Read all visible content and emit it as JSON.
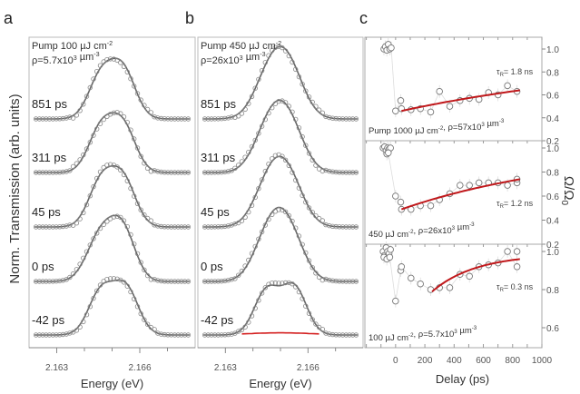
{
  "figure": {
    "panel_labels": [
      "a",
      "b",
      "c"
    ],
    "shared_ylabel": "Norm. Transmission (arb. units)"
  },
  "chart_data": [
    {
      "panel": "a",
      "type": "line",
      "title": "Pump 100 µJ cm-2",
      "annotation_lines": [
        {
          "text": "Pump 100 µJ cm",
          "sup": "-2"
        },
        {
          "text": "ρ=5.7x10",
          "sup": "3",
          "text2": " µm",
          "sup2": "-3"
        }
      ],
      "xlabel": "Energy (eV)",
      "ylabel": "Norm. Transmission (arb. units)",
      "xlim": [
        2.162,
        2.168
      ],
      "xticks": [
        2.163,
        2.166
      ],
      "xtick_labels": [
        "2.163",
        "2.166"
      ],
      "minor_xticks": [
        2.164,
        2.165,
        2.167
      ],
      "series_style": {
        "points": "open circles",
        "fit": "solid grey line"
      },
      "traces": [
        {
          "delay_label": "851 ps",
          "peaks": [
            {
              "center": 2.1646,
              "height": 0.8,
              "width": 0.00045
            },
            {
              "center": 2.1654,
              "height": 0.9,
              "width": 0.00045
            }
          ]
        },
        {
          "delay_label": "311 ps",
          "peaks": [
            {
              "center": 2.1646,
              "height": 0.82,
              "width": 0.00045
            },
            {
              "center": 2.1654,
              "height": 0.86,
              "width": 0.00045
            }
          ]
        },
        {
          "delay_label": "45 ps",
          "peaks": [
            {
              "center": 2.1646,
              "height": 0.84,
              "width": 0.00045
            },
            {
              "center": 2.1654,
              "height": 0.88,
              "width": 0.00045
            }
          ]
        },
        {
          "delay_label": "0 ps",
          "peaks": [
            {
              "center": 2.1646,
              "height": 0.88,
              "width": 0.0005
            },
            {
              "center": 2.1654,
              "height": 0.9,
              "width": 0.00045
            }
          ]
        },
        {
          "delay_label": "-42 ps",
          "peaks": [
            {
              "center": 2.1646,
              "height": 0.82,
              "width": 0.00045
            },
            {
              "center": 2.1655,
              "height": 0.88,
              "width": 0.00045
            }
          ]
        }
      ]
    },
    {
      "panel": "b",
      "type": "line",
      "annotation_lines": [
        {
          "text": "Pump 450 µJ cm",
          "sup": "-2"
        },
        {
          "text": "ρ=26x10",
          "sup": "3",
          "text2": " µm",
          "sup2": "-3"
        }
      ],
      "xlabel": "Energy (eV)",
      "xlim": [
        2.162,
        2.168
      ],
      "xticks": [
        2.163,
        2.166
      ],
      "xtick_labels": [
        "2.163",
        "2.166"
      ],
      "minor_xticks": [
        2.164,
        2.165,
        2.167
      ],
      "traces": [
        {
          "delay_label": "851 ps",
          "peaks": [
            {
              "center": 2.1646,
              "height": 0.78,
              "width": 0.00055
            },
            {
              "center": 2.1653,
              "height": 0.9,
              "width": 0.00055
            }
          ]
        },
        {
          "delay_label": "311 ps",
          "peaks": [
            {
              "center": 2.1646,
              "height": 0.82,
              "width": 0.00055
            },
            {
              "center": 2.1653,
              "height": 0.86,
              "width": 0.00055
            }
          ]
        },
        {
          "delay_label": "45 ps",
          "peaks": [
            {
              "center": 2.1646,
              "height": 0.8,
              "width": 0.00055
            },
            {
              "center": 2.1653,
              "height": 0.84,
              "width": 0.00055
            }
          ]
        },
        {
          "delay_label": "0 ps",
          "peaks": [
            {
              "center": 2.1646,
              "height": 0.86,
              "width": 0.00055
            },
            {
              "center": 2.1653,
              "height": 0.86,
              "width": 0.00055
            }
          ]
        },
        {
          "delay_label": "-42 ps",
          "peaks": [
            {
              "center": 2.1645,
              "height": 0.84,
              "width": 0.00045
            },
            {
              "center": 2.1655,
              "height": 0.9,
              "width": 0.00045
            }
          ]
        }
      ],
      "red_line": {
        "trace": "-42 ps",
        "x_range": [
          2.1636,
          2.1664
        ],
        "level": 0.02,
        "color": "#d42020"
      }
    },
    {
      "panel": "c",
      "type": "scatter",
      "xlabel": "Delay (ps)",
      "ylabel": "Ω/Ω0",
      "xlim": [
        -210,
        1000
      ],
      "xticks": [
        0,
        200,
        400,
        600,
        800,
        1000
      ],
      "xtick_labels": [
        "0",
        "200",
        "400",
        "600",
        "800",
        "1000"
      ],
      "fit_color": "#c0181b",
      "subplots": [
        {
          "annotation": {
            "text": "Pump 1000 µJ cm",
            "sup": "-2",
            "text2": ", ρ=57x10",
            "sup2": "3",
            "text3": " µm",
            "sup3": "-3"
          },
          "tau_label": "τR= 1.8 ns",
          "ylim": [
            0.2,
            1.08
          ],
          "yticks": [
            0.2,
            0.4,
            0.6,
            0.8,
            1.0
          ],
          "ytick_labels": [
            "0.2",
            "0.4",
            "0.6",
            "0.8",
            "1.0"
          ],
          "points": {
            "x": [
              -80,
              -70,
              -60,
              -50,
              -40,
              -30,
              0,
              35,
              40,
              105,
              170,
              240,
              300,
              370,
              440,
              505,
              570,
              635,
              700,
              765,
              830
            ],
            "y": [
              1.0,
              1.02,
              0.99,
              1.04,
              1.0,
              1.01,
              0.46,
              0.55,
              0.48,
              0.47,
              0.48,
              0.45,
              0.63,
              0.5,
              0.55,
              0.57,
              0.56,
              0.62,
              0.6,
              0.68,
              0.63
            ]
          },
          "fit": {
            "x_range": [
              40,
              850
            ],
            "tau_ns": 1.8,
            "y_start": 0.46,
            "y_end": 0.64
          }
        },
        {
          "annotation": {
            "text": "450 µJ cm",
            "sup": "-2",
            "text2": ",  ρ=26x10",
            "sup2": "3",
            "text3": " µm",
            "sup3": "-3"
          },
          "tau_label": "τR= 1.2 ns",
          "ylim": [
            0.2,
            1.08
          ],
          "yticks": [
            0.2,
            0.4,
            0.6,
            0.8,
            1.0
          ],
          "ytick_labels": [
            "0.2",
            "0.4",
            "0.6",
            "0.8",
            "1.0"
          ],
          "points": {
            "x": [
              -85,
              -75,
              -65,
              -55,
              -45,
              -35,
              -60,
              -50,
              0,
              35,
              40,
              105,
              170,
              240,
              300,
              370,
              440,
              505,
              570,
              635,
              700,
              765,
              830,
              830
            ],
            "y": [
              1.0,
              1.01,
              0.98,
              1.0,
              0.99,
              1.0,
              0.95,
              0.96,
              0.6,
              0.55,
              0.49,
              0.49,
              0.52,
              0.52,
              0.57,
              0.62,
              0.69,
              0.69,
              0.71,
              0.71,
              0.71,
              0.69,
              0.71,
              0.74
            ]
          },
          "fit": {
            "x_range": [
              40,
              850
            ],
            "tau_ns": 1.2,
            "y_start": 0.49,
            "y_end": 0.74
          }
        },
        {
          "annotation": {
            "text": "100 µJ cm",
            "sup": "-2",
            "text2": ", ρ=5.7x10",
            "sup2": "3",
            "text3": " µm",
            "sup3": "-3"
          },
          "tau_label": "τR= 0.3 ns",
          "ylim": [
            0.5,
            1.03
          ],
          "yticks": [
            0.6,
            0.8,
            1.0
          ],
          "ytick_labels": [
            "0.6",
            "0.8",
            "1.0"
          ],
          "points": {
            "x": [
              -85,
              -75,
              -65,
              -55,
              -45,
              -35,
              -80,
              -60,
              -40,
              0,
              35,
              40,
              105,
              170,
              240,
              300,
              370,
              440,
              505,
              570,
              635,
              700,
              765,
              830,
              830
            ],
            "y": [
              1.0,
              0.98,
              1.02,
              1.0,
              0.99,
              1.01,
              0.97,
              0.96,
              0.97,
              0.74,
              0.9,
              0.92,
              0.86,
              0.83,
              0.8,
              0.81,
              0.81,
              0.88,
              0.87,
              0.92,
              0.93,
              0.94,
              1.0,
              0.92,
              1.0
            ]
          },
          "fit": {
            "x_range": [
              250,
              850
            ],
            "tau_ns": 0.3,
            "y_start": 0.79,
            "y_end": 0.96
          }
        }
      ]
    }
  ]
}
